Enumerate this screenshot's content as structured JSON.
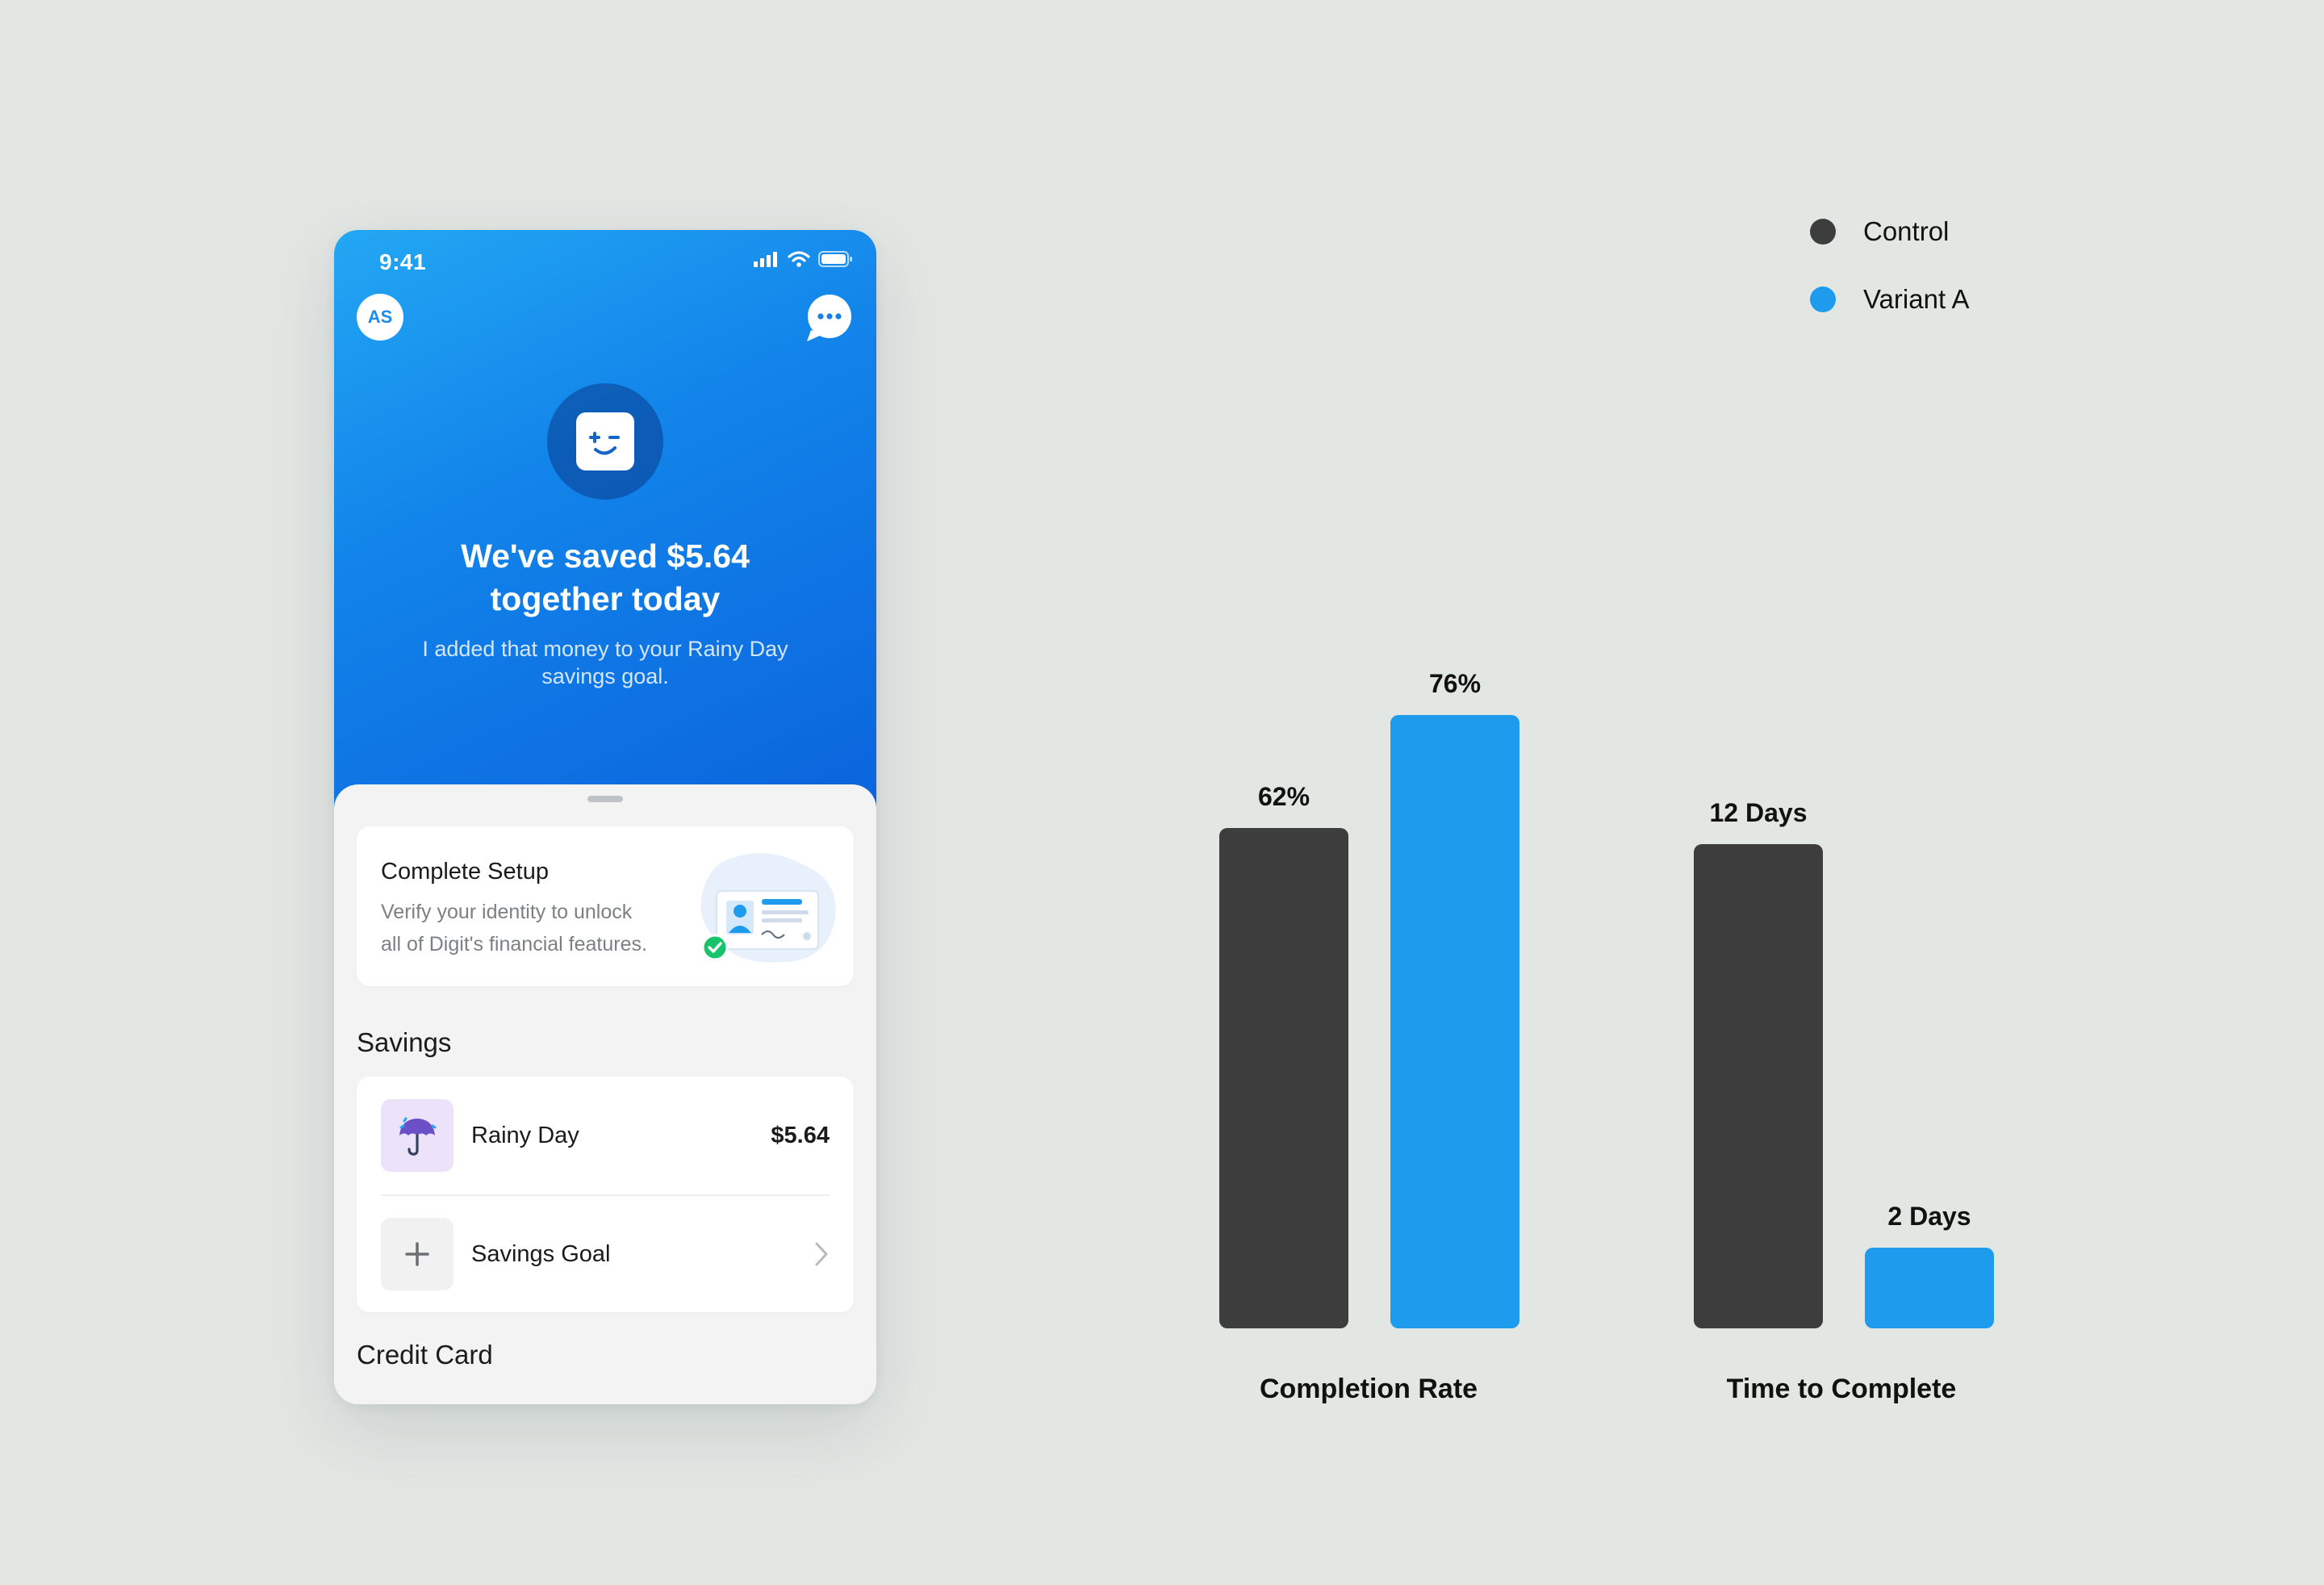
{
  "phone": {
    "status_bar": {
      "time": "9:41"
    },
    "header": {
      "avatar_initials": "AS"
    },
    "hero": {
      "title_line1": "We've saved $5.64",
      "title_line2": "together today",
      "subtitle": "I added that money to your Rainy Day savings goal."
    },
    "setup_card": {
      "title": "Complete Setup",
      "description_line1": "Verify your identity to unlock",
      "description_line2": "all of Digit's financial features."
    },
    "savings": {
      "section_title": "Savings",
      "items": [
        {
          "label": "Rainy Day",
          "value": "$5.64",
          "icon": "umbrella-icon"
        },
        {
          "label": "Savings Goal",
          "icon": "plus-icon"
        }
      ]
    },
    "credit_card": {
      "section_title": "Credit Card"
    },
    "colors": {
      "hero_start": "#23a7f3",
      "hero_end": "#0b63dc"
    }
  },
  "chart_data": {
    "type": "bar",
    "categories": [
      "Completion Rate",
      "Time to Complete"
    ],
    "series": [
      {
        "name": "Control",
        "color": "#3d3d3d",
        "values": [
          62,
          12
        ],
        "labels": [
          "62%",
          "12 Days"
        ]
      },
      {
        "name": "Variant A",
        "color": "#1f9bee",
        "values": [
          76,
          2
        ],
        "labels": [
          "76%",
          "2 Days"
        ]
      }
    ],
    "units": [
      "%",
      "Days"
    ],
    "ylim": [
      [
        0,
        100
      ],
      [
        0,
        20
      ]
    ],
    "legend_position": "top-right",
    "grid": false
  }
}
